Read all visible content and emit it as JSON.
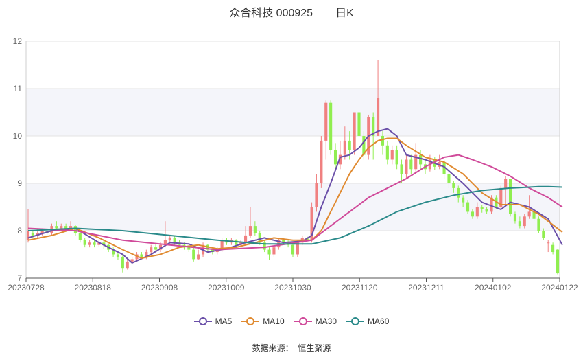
{
  "header": {
    "title": "众合科技 000925",
    "period": "日K"
  },
  "source": {
    "label": "数据来源：",
    "value": "恒生聚源"
  },
  "colors": {
    "up": "#f08080",
    "down": "#90ee50",
    "MA5": "#6a4fa8",
    "MA10": "#e08a30",
    "MA30": "#d04a9a",
    "MA60": "#2a8a8a",
    "band": "#f4f5fa",
    "grid": "#e3e3e3",
    "axis": "#666666"
  },
  "chart_data": {
    "type": "candlestick",
    "title": "众合科技 000925 日K",
    "ylim": [
      7,
      12
    ],
    "y_ticks": [
      7,
      8,
      9,
      10,
      11,
      12
    ],
    "x_tick_labels": [
      "20230728",
      "20230818",
      "20230908",
      "20231009",
      "20231030",
      "20231120",
      "20231211",
      "20240102",
      "20240122"
    ],
    "grid": true,
    "legend_position": "bottom",
    "candles": [
      [
        7.8,
        8.0,
        8.45,
        7.75
      ],
      [
        7.95,
        7.9,
        8.0,
        7.85
      ],
      [
        7.9,
        7.95,
        8.05,
        7.85
      ],
      [
        7.95,
        8.0,
        8.05,
        7.9
      ],
      [
        8.0,
        7.95,
        8.05,
        7.88
      ],
      [
        7.95,
        8.1,
        8.15,
        7.9
      ],
      [
        8.1,
        8.05,
        8.2,
        8.0
      ],
      [
        8.05,
        8.1,
        8.15,
        8.0
      ],
      [
        8.1,
        8.05,
        8.15,
        7.98
      ],
      [
        8.05,
        8.1,
        8.2,
        8.0
      ],
      [
        8.1,
        7.95,
        8.12,
        7.9
      ],
      [
        7.95,
        7.8,
        8.0,
        7.75
      ],
      [
        7.8,
        7.7,
        7.85,
        7.65
      ],
      [
        7.7,
        7.75,
        7.8,
        7.65
      ],
      [
        7.75,
        7.7,
        7.8,
        7.65
      ],
      [
        7.7,
        7.75,
        7.82,
        7.66
      ],
      [
        7.75,
        7.7,
        7.8,
        7.62
      ],
      [
        7.7,
        7.6,
        7.72,
        7.55
      ],
      [
        7.6,
        7.5,
        7.65,
        7.45
      ],
      [
        7.5,
        7.45,
        7.55,
        7.38
      ],
      [
        7.45,
        7.2,
        7.5,
        7.12
      ],
      [
        7.2,
        7.35,
        7.4,
        7.18
      ],
      [
        7.35,
        7.4,
        7.45,
        7.3
      ],
      [
        7.4,
        7.5,
        7.55,
        7.35
      ],
      [
        7.5,
        7.45,
        7.55,
        7.4
      ],
      [
        7.45,
        7.55,
        7.6,
        7.4
      ],
      [
        7.55,
        7.65,
        7.7,
        7.5
      ],
      [
        7.65,
        7.6,
        7.72,
        7.55
      ],
      [
        7.6,
        7.7,
        7.75,
        7.55
      ],
      [
        7.7,
        7.8,
        8.2,
        7.65
      ],
      [
        7.8,
        7.85,
        7.9,
        7.7
      ],
      [
        7.85,
        7.75,
        7.9,
        7.7
      ],
      [
        7.75,
        7.7,
        7.8,
        7.65
      ],
      [
        7.7,
        7.65,
        7.75,
        7.6
      ],
      [
        7.65,
        7.6,
        7.7,
        7.55
      ],
      [
        7.6,
        7.4,
        7.65,
        7.35
      ],
      [
        7.4,
        7.5,
        7.6,
        7.38
      ],
      [
        7.5,
        7.7,
        7.75,
        7.45
      ],
      [
        7.7,
        7.6,
        7.72,
        7.55
      ],
      [
        7.6,
        7.55,
        7.65,
        7.5
      ],
      [
        7.55,
        7.6,
        7.65,
        7.5
      ],
      [
        7.6,
        7.8,
        7.85,
        7.55
      ],
      [
        7.8,
        7.75,
        7.85,
        7.7
      ],
      [
        7.75,
        7.8,
        7.85,
        7.7
      ],
      [
        7.8,
        7.7,
        7.82,
        7.65
      ],
      [
        7.7,
        7.75,
        7.8,
        7.65
      ],
      [
        7.75,
        7.9,
        8.1,
        7.7
      ],
      [
        7.9,
        8.1,
        8.5,
        7.85
      ],
      [
        8.1,
        7.95,
        8.2,
        7.9
      ],
      [
        7.95,
        7.75,
        8.0,
        7.7
      ],
      [
        7.75,
        7.6,
        7.8,
        7.55
      ],
      [
        7.6,
        7.5,
        7.65,
        7.38
      ],
      [
        7.5,
        7.65,
        7.7,
        7.45
      ],
      [
        7.65,
        7.8,
        7.85,
        7.6
      ],
      [
        7.8,
        7.75,
        7.85,
        7.7
      ],
      [
        7.75,
        7.7,
        7.8,
        7.65
      ],
      [
        7.7,
        7.5,
        7.75,
        7.45
      ],
      [
        7.5,
        7.75,
        7.8,
        7.45
      ],
      [
        7.75,
        7.85,
        7.9,
        7.7
      ],
      [
        7.85,
        7.8,
        7.9,
        7.75
      ],
      [
        7.8,
        8.5,
        8.6,
        7.75
      ],
      [
        8.5,
        9.0,
        9.2,
        8.4
      ],
      [
        9.0,
        9.9,
        10.0,
        8.9
      ],
      [
        9.9,
        10.7,
        10.75,
        9.5
      ],
      [
        10.7,
        9.7,
        10.75,
        9.6
      ],
      [
        9.7,
        9.4,
        9.85,
        9.3
      ],
      [
        9.4,
        9.6,
        9.9,
        9.3
      ],
      [
        9.6,
        9.9,
        10.2,
        9.5
      ],
      [
        9.9,
        9.7,
        10.1,
        9.5
      ],
      [
        9.7,
        10.5,
        10.5,
        9.6
      ],
      [
        10.5,
        10.0,
        10.55,
        9.9
      ],
      [
        10.0,
        9.6,
        10.1,
        9.5
      ],
      [
        9.6,
        10.4,
        10.45,
        9.5
      ],
      [
        10.4,
        10.0,
        10.5,
        9.5
      ],
      [
        10.0,
        10.8,
        11.6,
        10.0
      ],
      [
        10.0,
        9.8,
        10.1,
        9.6
      ],
      [
        9.8,
        9.5,
        9.9,
        9.4
      ],
      [
        9.5,
        9.7,
        9.8,
        9.4
      ],
      [
        9.7,
        9.4,
        9.8,
        9.3
      ],
      [
        9.4,
        9.2,
        9.5,
        9.0
      ],
      [
        9.2,
        9.5,
        9.6,
        9.1
      ],
      [
        9.5,
        9.3,
        9.6,
        9.2
      ],
      [
        9.3,
        9.6,
        9.85,
        9.25
      ],
      [
        9.6,
        9.4,
        9.7,
        9.3
      ],
      [
        9.4,
        9.3,
        9.5,
        9.2
      ],
      [
        9.3,
        9.5,
        9.6,
        9.25
      ],
      [
        9.5,
        9.35,
        9.55,
        9.28
      ],
      [
        9.35,
        9.45,
        9.6,
        9.3
      ],
      [
        9.45,
        9.2,
        9.5,
        9.1
      ],
      [
        9.2,
        9.0,
        9.25,
        8.9
      ],
      [
        9.0,
        8.9,
        9.05,
        8.8
      ],
      [
        8.9,
        8.7,
        8.95,
        8.6
      ],
      [
        8.7,
        8.6,
        8.75,
        8.5
      ],
      [
        8.6,
        8.4,
        8.65,
        8.35
      ],
      [
        8.4,
        8.3,
        8.45,
        8.25
      ],
      [
        8.3,
        8.5,
        8.6,
        8.25
      ],
      [
        8.5,
        8.45,
        8.55,
        8.38
      ],
      [
        8.45,
        8.4,
        8.5,
        8.35
      ],
      [
        8.4,
        8.7,
        8.75,
        8.35
      ],
      [
        8.7,
        8.5,
        8.75,
        8.45
      ],
      [
        8.5,
        8.9,
        8.95,
        8.45
      ],
      [
        8.9,
        9.1,
        9.15,
        8.55
      ],
      [
        9.1,
        8.35,
        9.1,
        8.3
      ],
      [
        8.35,
        8.2,
        8.4,
        8.15
      ],
      [
        8.2,
        8.1,
        8.3,
        8.05
      ],
      [
        8.1,
        8.3,
        8.35,
        8.05
      ],
      [
        8.3,
        8.4,
        8.75,
        8.25
      ],
      [
        8.4,
        8.25,
        8.45,
        8.2
      ],
      [
        8.25,
        8.0,
        8.3,
        7.95
      ],
      [
        8.0,
        7.85,
        8.05,
        7.8
      ],
      [
        7.75,
        7.75,
        7.8,
        7.55
      ],
      [
        7.7,
        7.55,
        7.75,
        7.5
      ],
      [
        7.6,
        7.1,
        7.62,
        7.08
      ]
    ],
    "series": [
      {
        "name": "MA5",
        "x": [
          0,
          5,
          10,
          15,
          20,
          22,
          26,
          30,
          34,
          38,
          42,
          46,
          50,
          54,
          58,
          60,
          62,
          64,
          66,
          68,
          70,
          72,
          74,
          76,
          78,
          80,
          84,
          88,
          92,
          96,
          100,
          102,
          106,
          110,
          113
        ],
        "values": [
          7.85,
          8.0,
          8.05,
          7.75,
          7.5,
          7.32,
          7.5,
          7.75,
          7.72,
          7.55,
          7.62,
          7.75,
          7.85,
          7.75,
          7.78,
          7.9,
          8.5,
          9.0,
          9.55,
          9.6,
          9.75,
          10.0,
          10.1,
          10.15,
          10.0,
          9.6,
          9.5,
          9.35,
          9.0,
          8.6,
          8.45,
          8.6,
          8.5,
          8.25,
          7.7
        ]
      },
      {
        "name": "MA10",
        "x": [
          0,
          5,
          10,
          15,
          20,
          24,
          28,
          32,
          36,
          40,
          44,
          48,
          52,
          56,
          60,
          62,
          64,
          66,
          68,
          70,
          72,
          74,
          76,
          78,
          80,
          84,
          88,
          92,
          96,
          100,
          104,
          108,
          110,
          113
        ],
        "values": [
          7.8,
          7.9,
          8.05,
          7.85,
          7.6,
          7.42,
          7.5,
          7.65,
          7.7,
          7.62,
          7.65,
          7.75,
          7.85,
          7.8,
          7.8,
          8.0,
          8.4,
          8.8,
          9.2,
          9.5,
          9.75,
          9.9,
          9.95,
          9.95,
          9.8,
          9.55,
          9.45,
          9.2,
          8.8,
          8.55,
          8.55,
          8.35,
          8.2,
          7.97
        ]
      },
      {
        "name": "MA30",
        "x": [
          0,
          10,
          20,
          30,
          40,
          50,
          60,
          64,
          68,
          72,
          76,
          80,
          84,
          88,
          91,
          94,
          98,
          102,
          106,
          110,
          113
        ],
        "values": [
          8.05,
          8.0,
          7.8,
          7.7,
          7.6,
          7.65,
          7.8,
          8.1,
          8.4,
          8.7,
          8.9,
          9.1,
          9.35,
          9.55,
          9.6,
          9.5,
          9.35,
          9.15,
          8.9,
          8.7,
          8.5
        ]
      },
      {
        "name": "MA60",
        "x": [
          0,
          10,
          20,
          30,
          40,
          50,
          60,
          66,
          72,
          78,
          84,
          90,
          96,
          102,
          108,
          110,
          113
        ],
        "values": [
          8.0,
          8.05,
          8.0,
          7.9,
          7.8,
          7.72,
          7.72,
          7.85,
          8.1,
          8.4,
          8.6,
          8.75,
          8.85,
          8.9,
          8.93,
          8.93,
          8.92
        ]
      }
    ]
  }
}
